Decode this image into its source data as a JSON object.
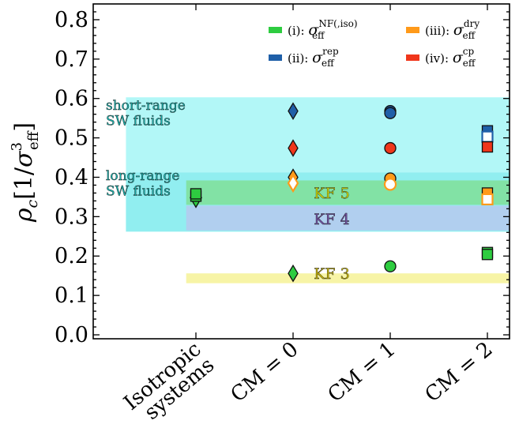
{
  "chart_data": {
    "type": "scatter",
    "categories": [
      "Isotropic\nsystems",
      "CM = 0",
      "CM = 1",
      "CM = 2"
    ],
    "ylabel": "ρ_c [1/σ_eff^3]",
    "ylim": [
      -0.01,
      0.84
    ],
    "yticks": [
      "0.0",
      "0.1",
      "0.2",
      "0.3",
      "0.4",
      "0.5",
      "0.6",
      "0.7",
      "0.8"
    ],
    "grid": false,
    "legend_position": "top-right",
    "series": [
      {
        "name": "(i): σ_eff^NF(,iso)",
        "color": "#2ecc40"
      },
      {
        "name": "(ii): σ_eff^rep",
        "color": "#1f5fa8"
      },
      {
        "name": "(iii): σ_eff^dry",
        "color": "#ff9a1a"
      },
      {
        "name": "(iv): σ_eff^cp",
        "color": "#f0361b"
      }
    ],
    "bands": [
      {
        "label": "short-range\nSW fluids",
        "y": [
          0.262,
          0.603
        ],
        "x": [
          -0.72,
          3.35
        ],
        "color": "#9ff5f5",
        "opacity": 0.8
      },
      {
        "label": "long-range\nSW fluids",
        "y": [
          0.262,
          0.412
        ],
        "x": [
          -0.72,
          3.35
        ],
        "color": "#70e6ea",
        "opacity": 0.5
      },
      {
        "label": "KF 5",
        "y": [
          0.33,
          0.392
        ],
        "x": [
          -0.1,
          3.25
        ],
        "color": "#7dde8c",
        "opacity": 0.75
      },
      {
        "label": "KF 4",
        "y": [
          0.265,
          0.328
        ],
        "x": [
          -0.1,
          3.25
        ],
        "color": "#b3ccee",
        "opacity": 0.95
      },
      {
        "label": "KF 3",
        "y": [
          0.131,
          0.156
        ],
        "x": [
          -0.1,
          3.25
        ],
        "color": "#f7f4a6",
        "opacity": 1.0
      }
    ],
    "points": [
      {
        "series": 0,
        "x": 0,
        "y": 0.338,
        "marker": "triangle"
      },
      {
        "series": 0,
        "x": 0,
        "y": 0.352,
        "marker": "square"
      },
      {
        "series": 0,
        "x": 0,
        "y": 0.358,
        "marker": "square"
      },
      {
        "series": 0,
        "x": 1,
        "y": 0.156,
        "marker": "diamond"
      },
      {
        "series": 1,
        "x": 1,
        "y": 0.568,
        "marker": "diamond"
      },
      {
        "series": 2,
        "x": 1,
        "y": 0.4,
        "marker": "diamond"
      },
      {
        "series": 2,
        "x": 1,
        "y": 0.385,
        "marker": "diamond-open"
      },
      {
        "series": 3,
        "x": 1,
        "y": 0.474,
        "marker": "diamond"
      },
      {
        "series": 0,
        "x": 2,
        "y": 0.174,
        "marker": "circle"
      },
      {
        "series": 1,
        "x": 2,
        "y": 0.568,
        "marker": "circle"
      },
      {
        "series": 1,
        "x": 2,
        "y": 0.563,
        "marker": "circle"
      },
      {
        "series": 2,
        "x": 2,
        "y": 0.397,
        "marker": "circle"
      },
      {
        "series": 2,
        "x": 2,
        "y": 0.382,
        "marker": "circle-open"
      },
      {
        "series": 3,
        "x": 2,
        "y": 0.474,
        "marker": "circle"
      },
      {
        "series": 0,
        "x": 3,
        "y": 0.209,
        "marker": "square"
      },
      {
        "series": 0,
        "x": 3,
        "y": 0.204,
        "marker": "square"
      },
      {
        "series": 1,
        "x": 3,
        "y": 0.518,
        "marker": "square"
      },
      {
        "series": 1,
        "x": 3,
        "y": 0.503,
        "marker": "square-open"
      },
      {
        "series": 2,
        "x": 3,
        "y": 0.36,
        "marker": "square"
      },
      {
        "series": 2,
        "x": 3,
        "y": 0.344,
        "marker": "square-open"
      },
      {
        "series": 3,
        "x": 3,
        "y": 0.477,
        "marker": "square"
      }
    ]
  }
}
